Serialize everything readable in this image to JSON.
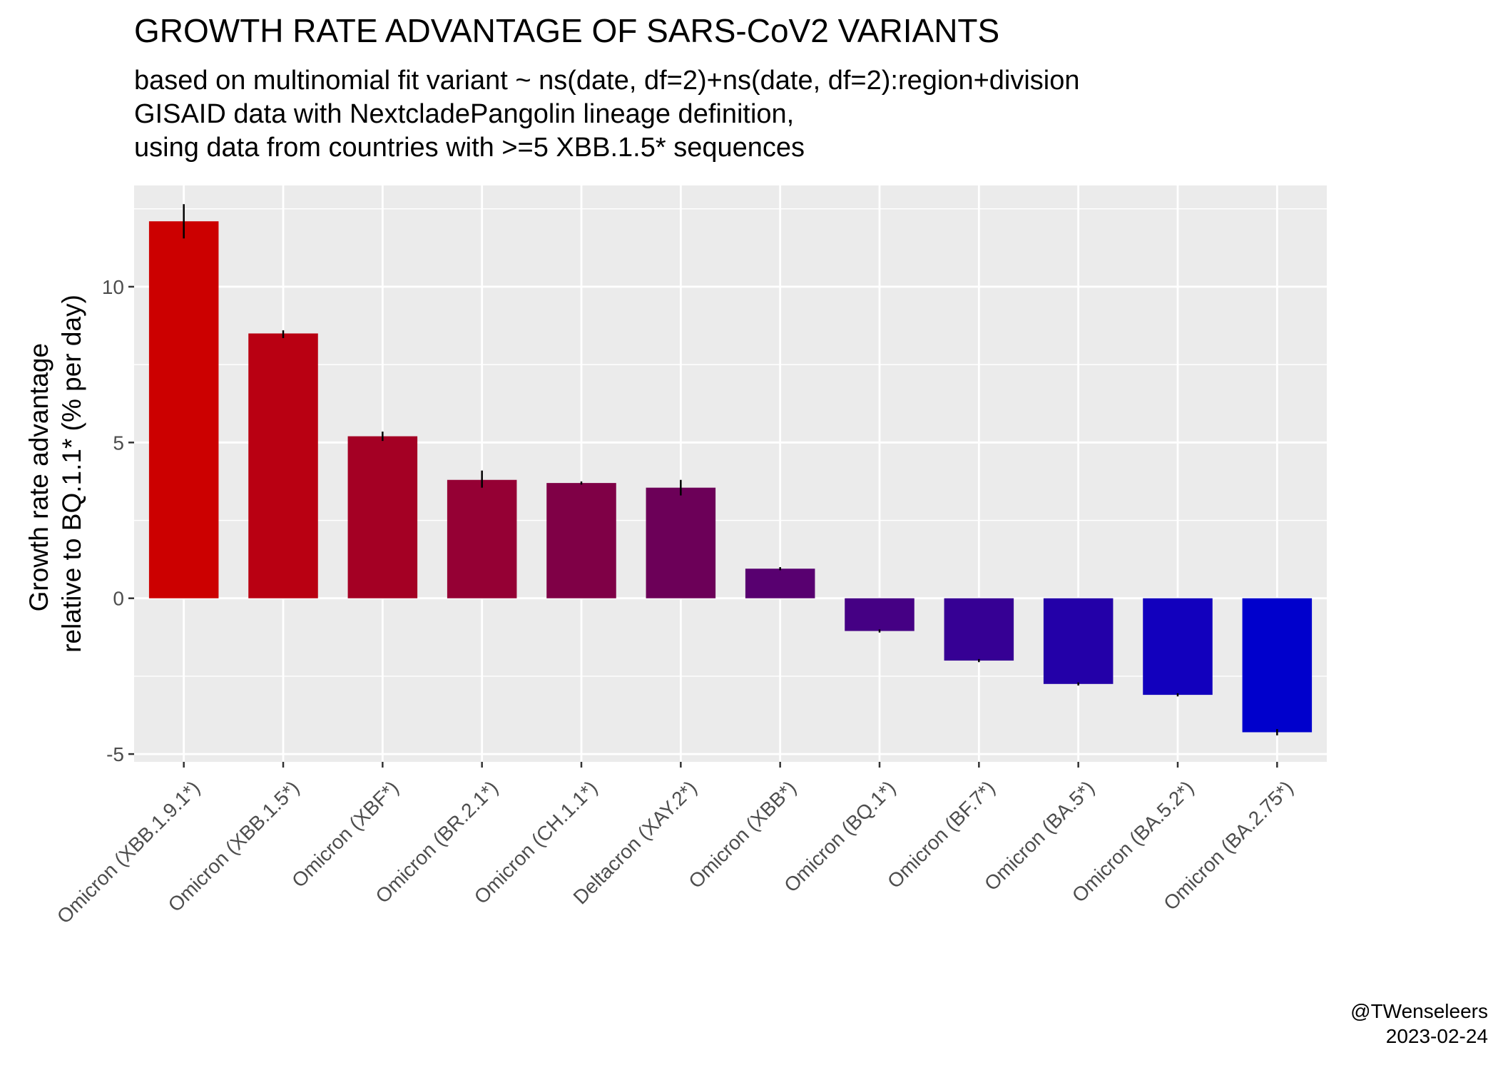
{
  "chart_data": {
    "type": "bar",
    "title": "GROWTH RATE ADVANTAGE OF SARS-CoV2 VARIANTS",
    "subtitle": [
      "based on multinomial fit variant ~ ns(date, df=2)+ns(date, df=2):region+division",
      "GISAID data with NextcladePangolin lineage definition,",
      "using data from countries with >=5 XBB.1.5* sequences"
    ],
    "xlabel": "",
    "ylabel": [
      "Growth rate advantage",
      "relative to BQ.1.1* (% per day)"
    ],
    "ylim": [
      -5.25,
      13.25
    ],
    "yticks": [
      -5,
      0,
      5,
      10
    ],
    "ytick_labels": [
      "-5",
      "0",
      "5",
      "10"
    ],
    "grid": true,
    "legend": "none",
    "categories": [
      "Omicron (XBB.1.9.1*)",
      "Omicron (XBB.1.5*)",
      "Omicron (XBF*)",
      "Omicron (BR.2.1*)",
      "Omicron (CH.1.1*)",
      "Deltacron (XAY.2*)",
      "Omicron (XBB*)",
      "Omicron (BQ.1*)",
      "Omicron (BF.7*)",
      "Omicron (BA.5*)",
      "Omicron (BA.5.2*)",
      "Omicron (BA.2.75*)"
    ],
    "values": [
      12.1,
      8.5,
      5.2,
      3.8,
      3.7,
      3.55,
      0.95,
      -1.05,
      -2.0,
      -2.75,
      -3.1,
      -4.3
    ],
    "ci_lower": [
      11.55,
      8.35,
      5.05,
      3.55,
      3.65,
      3.3,
      0.9,
      -1.1,
      -2.05,
      -2.8,
      -3.15,
      -4.4
    ],
    "ci_upper": [
      12.65,
      8.6,
      5.35,
      4.1,
      3.75,
      3.8,
      1.0,
      -1.0,
      -1.95,
      -2.7,
      -3.05,
      -4.2
    ],
    "colors": [
      "#cc0000",
      "#b90012",
      "#a40024",
      "#950034",
      "#7f0046",
      "#6c0058",
      "#580070",
      "#450084",
      "#360094",
      "#2300a8",
      "#1200bd",
      "#0000cc"
    ]
  },
  "caption": {
    "author": "@TWenseleers",
    "date": "2023-02-24"
  }
}
